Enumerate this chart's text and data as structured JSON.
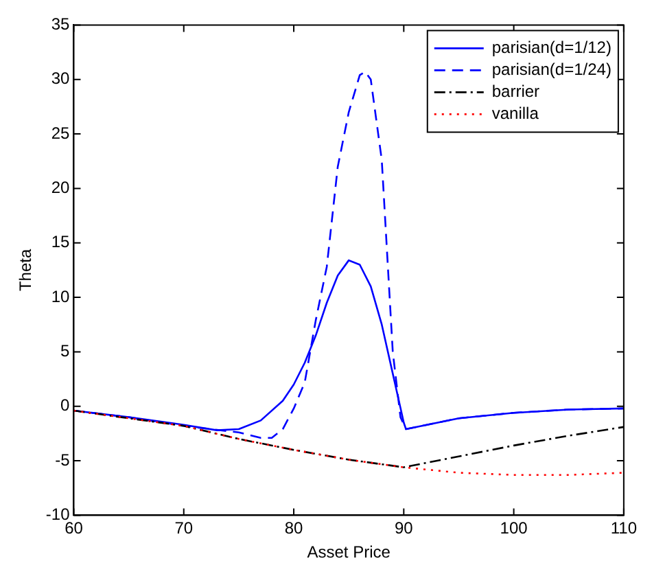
{
  "chart_data": {
    "type": "line",
    "xlabel": "Asset Price",
    "ylabel": "Theta",
    "xlim": [
      60,
      110
    ],
    "ylim": [
      -10,
      35
    ],
    "xticks": [
      60,
      70,
      80,
      90,
      100,
      110
    ],
    "yticks": [
      -10,
      -5,
      0,
      5,
      10,
      15,
      20,
      25,
      30,
      35
    ],
    "grid": false,
    "legend": "top right",
    "marker": "none",
    "series": [
      {
        "name": "parisian(d=1/12)",
        "color": "#0000ff",
        "line_style": "solid",
        "x": [
          60,
          65,
          70,
          73,
          75,
          77,
          79,
          80,
          81,
          82,
          83,
          84,
          85,
          86,
          87,
          88,
          89,
          90,
          90.2,
          95,
          100,
          105,
          110
        ],
        "values": [
          -0.4,
          -1.0,
          -1.7,
          -2.2,
          -2.1,
          -1.3,
          0.5,
          2,
          4,
          6.5,
          9.5,
          12,
          13.4,
          13,
          11,
          7.5,
          3,
          -1.5,
          -2.1,
          -1.1,
          -0.6,
          -0.3,
          -0.2
        ]
      },
      {
        "name": "parisian(d=1/24)",
        "color": "#0000ff",
        "line_style": "dashed",
        "x": [
          60,
          65,
          70,
          75,
          77,
          78,
          79,
          80,
          81,
          82,
          83,
          84,
          85,
          86,
          86.5,
          87,
          88,
          89,
          89.7,
          90.2,
          95,
          100,
          105,
          110
        ],
        "values": [
          -0.4,
          -1.0,
          -1.8,
          -2.4,
          -2.9,
          -2.9,
          -2.1,
          -0.2,
          2.2,
          7.9,
          12.8,
          22,
          27,
          30.4,
          30.7,
          30,
          22.6,
          5,
          -1,
          -2.1,
          -1.1,
          -0.6,
          -0.3,
          -0.2
        ]
      },
      {
        "name": "barrier",
        "color": "#000000",
        "line_style": "dashdot",
        "x": [
          60,
          70,
          75,
          80,
          85,
          90,
          95,
          100,
          105,
          110
        ],
        "values": [
          -0.4,
          -1.8,
          -3,
          -4.0,
          -4.9,
          -5.6,
          -4.6,
          -3.6,
          -2.7,
          -1.9
        ]
      },
      {
        "name": "vanilla",
        "color": "#ff0000",
        "line_style": "dotted",
        "x": [
          60,
          70,
          75,
          80,
          85,
          90,
          92,
          95,
          100,
          105,
          110
        ],
        "values": [
          -0.4,
          -1.8,
          -3,
          -4.0,
          -4.9,
          -5.6,
          -5.8,
          -6.1,
          -6.3,
          -6.3,
          -6.1
        ]
      }
    ]
  }
}
